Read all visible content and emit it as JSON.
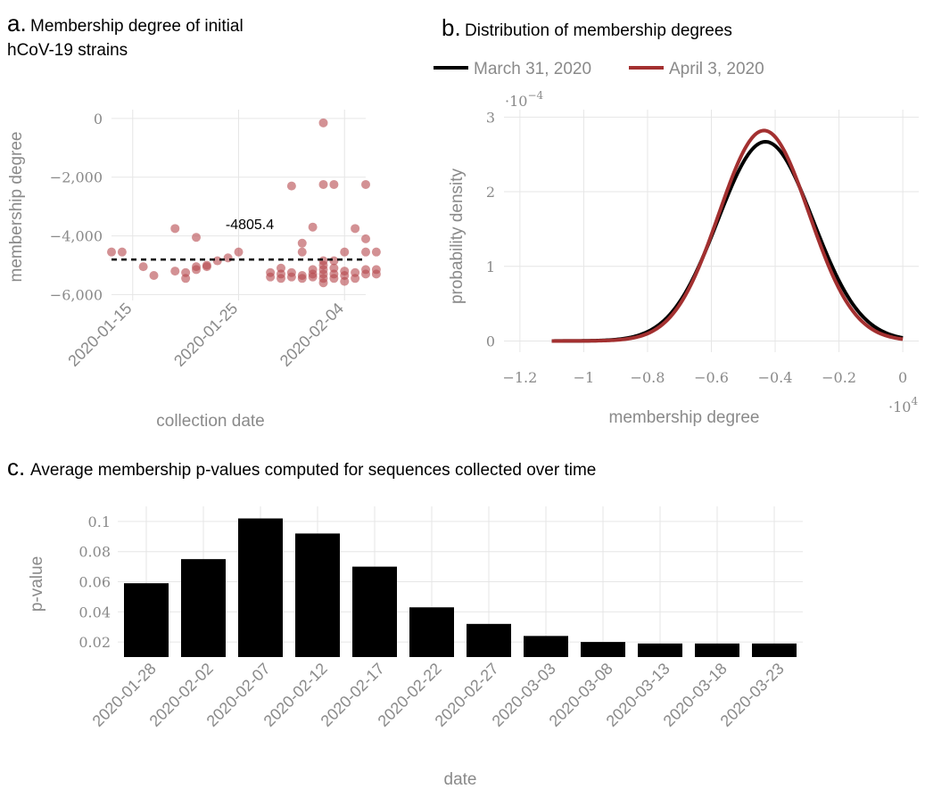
{
  "panel_a": {
    "letter": "a.",
    "title_line1": "Membership degree of initial",
    "title_line2": "hCoV-19 strains"
  },
  "panel_b": {
    "letter": "b.",
    "title": "Distribution of membership degrees"
  },
  "panel_c": {
    "letter": "c.",
    "title": "Average membership p-values computed for sequences collected over time"
  },
  "colors": {
    "black": "#000000",
    "red": "#a33030",
    "point": "#b5484c",
    "grid": "#e6e6e6",
    "text_gray": "#8a8a8a"
  },
  "chart_data": [
    {
      "type": "scatter",
      "xlabel": "collection date",
      "ylabel": "membership degree",
      "x_ticks": [
        "2020-01-15",
        "2020-01-25",
        "2020-02-04"
      ],
      "xlim": [
        "2020-01-13",
        "2020-02-06"
      ],
      "y_ticks": [
        "0",
        "−2,000",
        "−4,000",
        "−6,000"
      ],
      "y_tick_values": [
        0,
        -2000,
        -4000,
        -6000
      ],
      "ylim": [
        -6200,
        300
      ],
      "reference_line": {
        "value": -4805.4,
        "label": "-4805.4",
        "style": "dashed"
      },
      "points": [
        {
          "x": "2020-01-13",
          "y": -4550
        },
        {
          "x": "2020-01-14",
          "y": -4550
        },
        {
          "x": "2020-01-16",
          "y": -5050
        },
        {
          "x": "2020-01-17",
          "y": -5350
        },
        {
          "x": "2020-01-19",
          "y": -3750
        },
        {
          "x": "2020-01-19",
          "y": -5200
        },
        {
          "x": "2020-01-20",
          "y": -5450
        },
        {
          "x": "2020-01-20",
          "y": -5250
        },
        {
          "x": "2020-01-21",
          "y": -4050
        },
        {
          "x": "2020-01-21",
          "y": -5050
        },
        {
          "x": "2020-01-21",
          "y": -5150
        },
        {
          "x": "2020-01-22",
          "y": -5050
        },
        {
          "x": "2020-01-22",
          "y": -5000
        },
        {
          "x": "2020-01-23",
          "y": -4850
        },
        {
          "x": "2020-01-24",
          "y": -4750
        },
        {
          "x": "2020-01-25",
          "y": -4550
        },
        {
          "x": "2020-01-28",
          "y": -5250
        },
        {
          "x": "2020-01-28",
          "y": -5400
        },
        {
          "x": "2020-01-29",
          "y": -5100
        },
        {
          "x": "2020-01-29",
          "y": -5300
        },
        {
          "x": "2020-01-29",
          "y": -5450
        },
        {
          "x": "2020-01-30",
          "y": -2300
        },
        {
          "x": "2020-01-30",
          "y": -5250
        },
        {
          "x": "2020-01-30",
          "y": -5400
        },
        {
          "x": "2020-01-31",
          "y": -5350
        },
        {
          "x": "2020-01-31",
          "y": -5450
        },
        {
          "x": "2020-02-01",
          "y": -3700
        },
        {
          "x": "2020-02-01",
          "y": -5150
        },
        {
          "x": "2020-02-01",
          "y": -5300
        },
        {
          "x": "2020-02-01",
          "y": -5400
        },
        {
          "x": "2020-01-31",
          "y": -4550
        },
        {
          "x": "2020-01-31",
          "y": -4250
        },
        {
          "x": "2020-02-02",
          "y": -150
        },
        {
          "x": "2020-02-02",
          "y": -2250
        },
        {
          "x": "2020-02-02",
          "y": -4850
        },
        {
          "x": "2020-02-02",
          "y": -5000
        },
        {
          "x": "2020-02-02",
          "y": -5150
        },
        {
          "x": "2020-02-02",
          "y": -5300
        },
        {
          "x": "2020-02-02",
          "y": -5450
        },
        {
          "x": "2020-02-02",
          "y": -5600
        },
        {
          "x": "2020-02-03",
          "y": -2250
        },
        {
          "x": "2020-02-03",
          "y": -4850
        },
        {
          "x": "2020-02-03",
          "y": -5100
        },
        {
          "x": "2020-02-03",
          "y": -5300
        },
        {
          "x": "2020-02-03",
          "y": -5450
        },
        {
          "x": "2020-02-04",
          "y": -4550
        },
        {
          "x": "2020-02-04",
          "y": -5200
        },
        {
          "x": "2020-02-04",
          "y": -5350
        },
        {
          "x": "2020-02-04",
          "y": -5550
        },
        {
          "x": "2020-02-05",
          "y": -3750
        },
        {
          "x": "2020-02-05",
          "y": -5250
        },
        {
          "x": "2020-02-05",
          "y": -5450
        },
        {
          "x": "2020-02-06",
          "y": -2250
        },
        {
          "x": "2020-02-06",
          "y": -4100
        },
        {
          "x": "2020-02-06",
          "y": -4550
        },
        {
          "x": "2020-02-06",
          "y": -5150
        },
        {
          "x": "2020-02-06",
          "y": -5300
        },
        {
          "x": "2020-02-07",
          "y": -4550
        },
        {
          "x": "2020-02-07",
          "y": -5150
        },
        {
          "x": "2020-02-07",
          "y": -5300
        }
      ]
    },
    {
      "type": "line",
      "xlabel": "membership degree",
      "ylabel": "probability density",
      "x_multiplier": "·10",
      "x_multiplier_exp": "4",
      "y_multiplier": "·10",
      "y_multiplier_exp": "−4",
      "x_ticks": [
        "−1.2",
        "−1",
        "−0.8",
        "−0.6",
        "−0.4",
        "−0.2",
        "0"
      ],
      "x_tick_values": [
        -1.2,
        -1.0,
        -0.8,
        -0.6,
        -0.4,
        -0.2,
        0
      ],
      "y_ticks": [
        "0",
        "1",
        "2",
        "3"
      ],
      "y_tick_values": [
        0,
        1,
        2,
        3
      ],
      "xlim": [
        -1.25,
        0.05
      ],
      "ylim": [
        -0.15,
        3.1
      ],
      "series": [
        {
          "name": "March 31, 2020",
          "color": "#000000",
          "mean": -0.4305,
          "sd": 0.149,
          "peak": 2.67,
          "x_range": [
            -1.1,
            0
          ]
        },
        {
          "name": "April 3, 2020",
          "color": "#a33030",
          "mean": -0.435,
          "sd": 0.141,
          "peak": 2.82,
          "x_range": [
            -1.1,
            0
          ]
        }
      ],
      "legend_placement": "top"
    },
    {
      "type": "bar",
      "xlabel": "date",
      "ylabel": "p-value",
      "categories": [
        "2020-01-28",
        "2020-02-02",
        "2020-02-07",
        "2020-02-12",
        "2020-02-17",
        "2020-02-22",
        "2020-02-27",
        "2020-03-03",
        "2020-03-08",
        "2020-03-13",
        "2020-03-18",
        "2020-03-23"
      ],
      "values": [
        0.059,
        0.075,
        0.102,
        0.092,
        0.07,
        0.043,
        0.032,
        0.024,
        0.02,
        0.019,
        0.019,
        0.019
      ],
      "y_ticks": [
        "0.02",
        "0.04",
        "0.06",
        "0.08",
        "0.1"
      ],
      "y_tick_values": [
        0.02,
        0.04,
        0.06,
        0.08,
        0.1
      ],
      "ylim": [
        0.01,
        0.11
      ]
    }
  ]
}
